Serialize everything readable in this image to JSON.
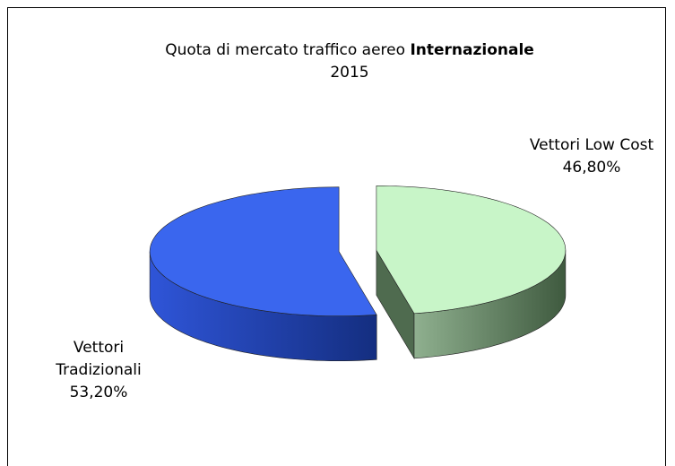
{
  "chart_data": {
    "type": "pie3d",
    "title": "Quota di mercato traffico aereo",
    "title_emphasis": "Internazionale",
    "subtitle": "2015",
    "categories": [
      "Vettori Low Cost",
      "Vettori Tradizionali"
    ],
    "values": [
      46.8,
      53.2
    ],
    "value_labels": [
      "46,80%",
      "53,20%"
    ],
    "colors": [
      "#c8f5c8",
      "#3a66ee"
    ],
    "side_colors": [
      "#4f6b4f",
      "#1f3fa8"
    ]
  }
}
